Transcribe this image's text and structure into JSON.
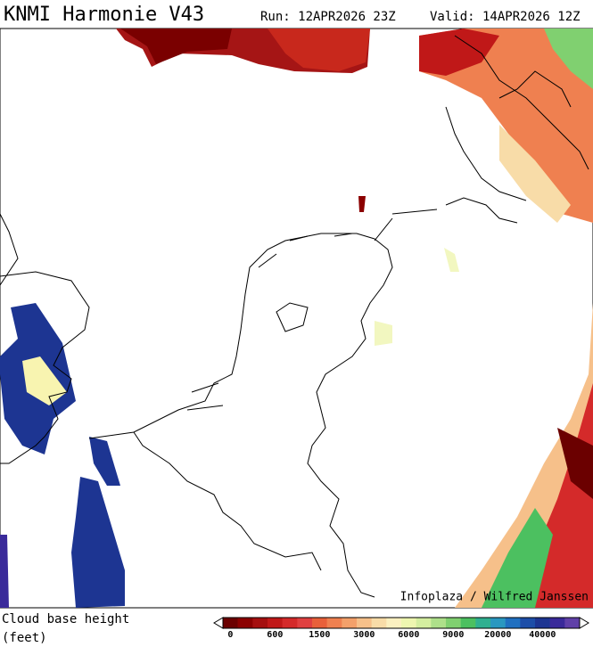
{
  "header": {
    "title": "KNMI Harmonie V43",
    "run": "Run: 12APR2026 23Z",
    "valid": "Valid: 14APR2026 12Z"
  },
  "credit": "Infoplaza / Wilfred Janssen",
  "legend": {
    "title_line1": "Cloud base height",
    "title_line2": "(feet)",
    "colors": [
      "#6b0000",
      "#8b0000",
      "#a50f0f",
      "#c01818",
      "#d42a2a",
      "#e04040",
      "#e8603a",
      "#ef8050",
      "#f3a06a",
      "#f6c08a",
      "#f8dca8",
      "#fbf0c0",
      "#eef6b0",
      "#d4eea0",
      "#aee08a",
      "#80d070",
      "#4cc060",
      "#30b090",
      "#2a98c0",
      "#2070c0",
      "#1d4ea8",
      "#1d3592",
      "#3a2a9a",
      "#6040a8"
    ],
    "ticks": [
      "0",
      "600",
      "1500",
      "3000",
      "6000",
      "9000",
      "20000",
      "40000"
    ]
  }
}
